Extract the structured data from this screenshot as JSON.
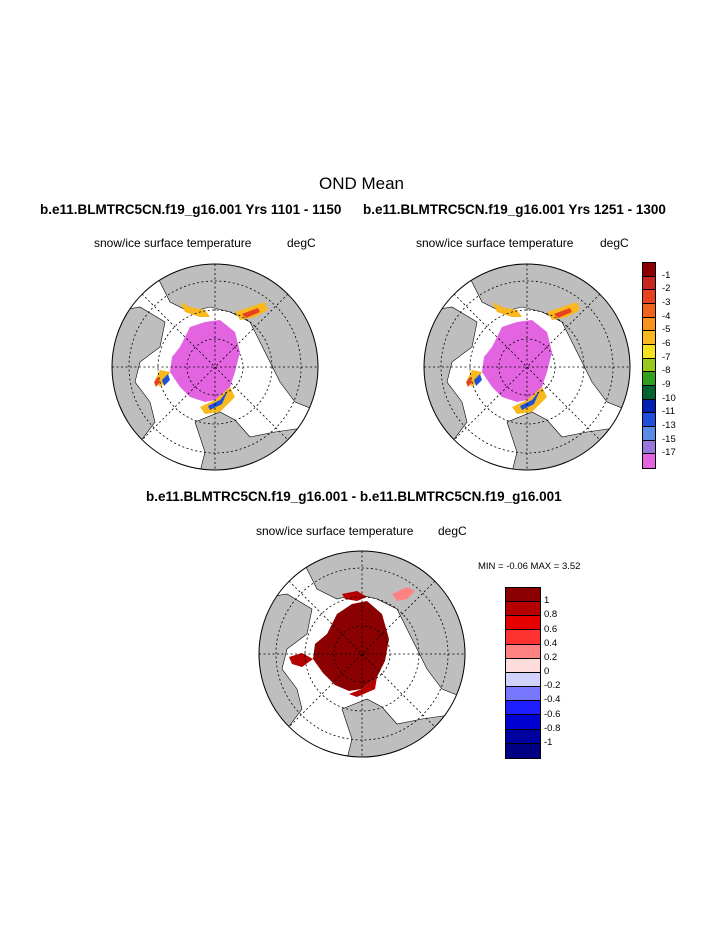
{
  "title": "OND Mean",
  "panels": [
    {
      "run_title": "b.e11.BLMTRC5CN.f19_g16.001  Yrs 1101 - 1150",
      "variable": "snow/ice surface temperature",
      "units": "degC"
    },
    {
      "run_title": "b.e11.BLMTRC5CN.f19_g16.001  Yrs 1251 - 1300",
      "variable": "snow/ice surface temperature",
      "units": "degC"
    }
  ],
  "diff_panel": {
    "run_title": "b.e11.BLMTRC5CN.f19_g16.001 - b.e11.BLMTRC5CN.f19_g16.001",
    "variable": "snow/ice surface temperature",
    "units": "degC",
    "stats": "MIN =  -0.06 MAX =   3.52"
  },
  "colorbar_mean": {
    "labels": [
      "-1",
      "-2",
      "-3",
      "-4",
      "-5",
      "-6",
      "-7",
      "-8",
      "-9",
      "-10",
      "-11",
      "-13",
      "-15",
      "-17"
    ],
    "colors": [
      "#8b0000",
      "#c8281e",
      "#e8411e",
      "#f0641e",
      "#f7941e",
      "#f8b81e",
      "#f5e11e",
      "#96c81e",
      "#32a01e",
      "#006432",
      "#0020b4",
      "#1e50dc",
      "#5a8ce6",
      "#9678dc",
      "#e264e1"
    ]
  },
  "colorbar_diff": {
    "labels": [
      "1",
      "0.8",
      "0.6",
      "0.4",
      "0.2",
      "0",
      "-0.2",
      "-0.4",
      "-0.6",
      "-0.8",
      "-1"
    ],
    "colors": [
      "#8b0000",
      "#b40000",
      "#e60000",
      "#ff3232",
      "#ff8282",
      "#ffdcdc",
      "#d2d2ff",
      "#7878ff",
      "#1e1eff",
      "#0000d2",
      "#0000a0",
      "#000082"
    ]
  }
}
